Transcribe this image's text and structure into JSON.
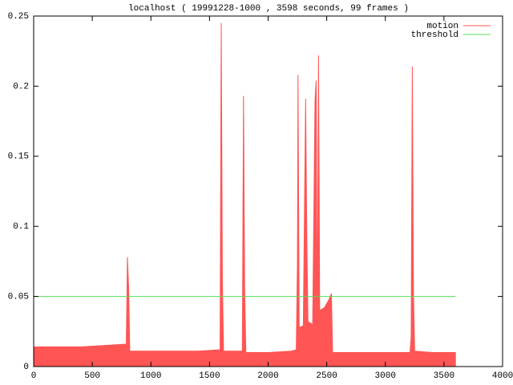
{
  "chart_data": {
    "type": "area",
    "title": "localhost ( 19991228-1000 , 3598 seconds, 99 frames )",
    "xlim": [
      0,
      4000
    ],
    "xticks": [
      0,
      500,
      1000,
      1500,
      2000,
      2500,
      3000,
      3500,
      4000
    ],
    "ylim": [
      0,
      0.25
    ],
    "yticks": [
      0,
      0.05,
      0.1,
      0.15,
      0.2,
      0.25
    ],
    "legend": "top-right",
    "series": [
      {
        "name": "motion",
        "color": "#ff5555",
        "x": [
          0,
          200,
          400,
          600,
          790,
          800,
          810,
          820,
          1000,
          1200,
          1400,
          1590,
          1600,
          1610,
          1620,
          1780,
          1790,
          1800,
          1810,
          2000,
          2200,
          2240,
          2250,
          2255,
          2265,
          2300,
          2320,
          2330,
          2340,
          2380,
          2400,
          2410,
          2420,
          2425,
          2430,
          2440,
          2480,
          2520,
          2540,
          2550,
          2800,
          3000,
          3210,
          3220,
          3230,
          3240,
          3250,
          3400,
          3598
        ],
        "values": [
          0.014,
          0.014,
          0.014,
          0.015,
          0.016,
          0.078,
          0.057,
          0.011,
          0.011,
          0.011,
          0.011,
          0.012,
          0.245,
          0.06,
          0.011,
          0.011,
          0.193,
          0.055,
          0.01,
          0.01,
          0.011,
          0.012,
          0.074,
          0.208,
          0.028,
          0.029,
          0.191,
          0.093,
          0.032,
          0.03,
          0.19,
          0.204,
          0.014,
          0.134,
          0.222,
          0.04,
          0.042,
          0.048,
          0.052,
          0.01,
          0.01,
          0.01,
          0.01,
          0.021,
          0.214,
          0.052,
          0.011,
          0.01,
          0.01
        ]
      },
      {
        "name": "threshold",
        "color": "#55dd55",
        "x": [
          0,
          3598
        ],
        "values": [
          0.05,
          0.05
        ]
      }
    ]
  }
}
